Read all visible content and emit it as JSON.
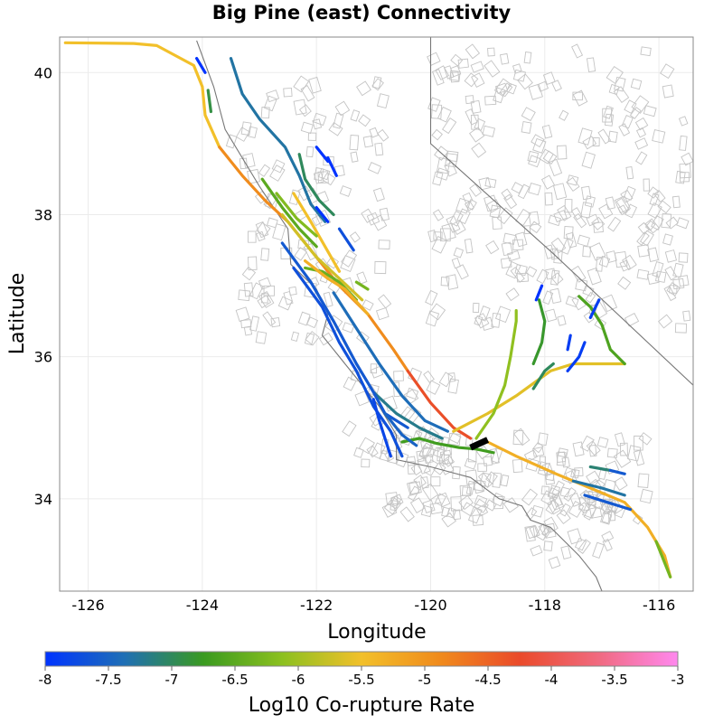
{
  "chart_data": {
    "type": "map",
    "title": "Big Pine (east) Connectivity",
    "xlabel": "Longitude",
    "ylabel": "Latitude",
    "xlim": [
      -126.5,
      -115.4
    ],
    "ylim": [
      32.7,
      40.5
    ],
    "x_ticks": [
      -126,
      -124,
      -122,
      -120,
      -118,
      -116
    ],
    "y_ticks": [
      34,
      36,
      38,
      40
    ],
    "grid": true,
    "colorbar": {
      "label": "Log10 Co-rupture Rate",
      "range": [
        -8,
        -3
      ],
      "ticks": [
        "-8",
        "-7.5",
        "-7",
        "-6.5",
        "-6",
        "-5.5",
        "-5",
        "-4.5",
        "-4",
        "-3.5",
        "-3"
      ],
      "colors": [
        "#0033ff",
        "#1f6fb5",
        "#3a9a20",
        "#8cc020",
        "#f2c02a",
        "#f08a1c",
        "#ea4a2a",
        "#f06a80",
        "#ff88ee"
      ]
    },
    "source_section": {
      "color": "#000000",
      "points": [
        [
          -119.3,
          34.72
        ],
        [
          -119.0,
          34.83
        ]
      ]
    },
    "faults": [
      {
        "rate": -5.5,
        "points": [
          [
            -126.4,
            40.42
          ],
          [
            -125.2,
            40.41
          ],
          [
            -124.8,
            40.38
          ],
          [
            -124.15,
            40.1
          ],
          [
            -124.0,
            39.8
          ],
          [
            -123.95,
            39.4
          ],
          [
            -123.7,
            38.95
          ]
        ]
      },
      {
        "rate": -4.9,
        "points": [
          [
            -123.7,
            38.95
          ],
          [
            -123.3,
            38.55
          ],
          [
            -122.9,
            38.2
          ],
          [
            -122.5,
            37.9
          ],
          [
            -122.1,
            37.5
          ],
          [
            -121.6,
            37.0
          ],
          [
            -121.1,
            36.6
          ],
          [
            -120.65,
            36.1
          ],
          [
            -120.4,
            35.8
          ]
        ]
      },
      {
        "rate": -4.3,
        "points": [
          [
            -120.4,
            35.8
          ],
          [
            -120.0,
            35.35
          ],
          [
            -119.6,
            35.0
          ],
          [
            -119.3,
            34.85
          ]
        ]
      },
      {
        "rate": -5.3,
        "points": [
          [
            -119.0,
            34.8
          ],
          [
            -118.5,
            34.6
          ],
          [
            -117.8,
            34.35
          ],
          [
            -117.2,
            34.15
          ],
          [
            -116.6,
            33.95
          ],
          [
            -116.2,
            33.6
          ],
          [
            -115.9,
            33.2
          ],
          [
            -115.8,
            32.9
          ]
        ]
      },
      {
        "rate": -6.3,
        "points": [
          [
            -116.05,
            33.4
          ],
          [
            -115.8,
            32.9
          ]
        ]
      },
      {
        "rate": -5.6,
        "points": [
          [
            -119.6,
            34.95
          ],
          [
            -119.0,
            35.2
          ],
          [
            -118.5,
            35.45
          ],
          [
            -117.9,
            35.8
          ],
          [
            -117.5,
            35.9
          ],
          [
            -117.0,
            35.9
          ],
          [
            -116.6,
            35.9
          ]
        ]
      },
      {
        "rate": -6.6,
        "points": [
          [
            -116.6,
            35.9
          ],
          [
            -116.85,
            36.1
          ],
          [
            -117.0,
            36.45
          ],
          [
            -117.2,
            36.7
          ],
          [
            -117.4,
            36.85
          ]
        ]
      },
      {
        "rate": -6.1,
        "points": [
          [
            -119.2,
            34.85
          ],
          [
            -118.9,
            35.2
          ],
          [
            -118.7,
            35.6
          ],
          [
            -118.6,
            36.0
          ],
          [
            -118.5,
            36.5
          ],
          [
            -118.5,
            36.65
          ]
        ]
      },
      {
        "rate": -6.8,
        "points": [
          [
            -118.2,
            35.9
          ],
          [
            -118.05,
            36.2
          ],
          [
            -118.0,
            36.5
          ],
          [
            -118.1,
            36.8
          ]
        ]
      },
      {
        "rate": -8.0,
        "points": [
          [
            -118.15,
            36.8
          ],
          [
            -118.05,
            37.0
          ]
        ]
      },
      {
        "rate": -7.0,
        "points": [
          [
            -118.2,
            35.55
          ],
          [
            -118.0,
            35.8
          ],
          [
            -117.85,
            35.9
          ]
        ]
      },
      {
        "rate": -7.9,
        "points": [
          [
            -117.6,
            35.8
          ],
          [
            -117.4,
            36.0
          ],
          [
            -117.3,
            36.2
          ]
        ]
      },
      {
        "rate": -7.9,
        "points": [
          [
            -117.6,
            36.1
          ],
          [
            -117.55,
            36.3
          ]
        ]
      },
      {
        "rate": -7.9,
        "points": [
          [
            -117.2,
            36.55
          ],
          [
            -117.05,
            36.8
          ]
        ]
      },
      {
        "rate": -6.7,
        "points": [
          [
            -120.5,
            34.8
          ],
          [
            -120.2,
            34.85
          ],
          [
            -119.9,
            34.78
          ],
          [
            -119.5,
            34.72
          ],
          [
            -119.2,
            34.7
          ],
          [
            -118.9,
            34.65
          ]
        ]
      },
      {
        "rate": -7.2,
        "points": [
          [
            -121.0,
            35.5
          ],
          [
            -120.6,
            35.2
          ],
          [
            -120.2,
            35.0
          ],
          [
            -119.8,
            34.85
          ]
        ]
      },
      {
        "rate": -7.4,
        "points": [
          [
            -121.7,
            36.9
          ],
          [
            -121.3,
            36.4
          ],
          [
            -120.9,
            35.9
          ],
          [
            -120.5,
            35.45
          ],
          [
            -120.1,
            35.1
          ],
          [
            -119.7,
            34.95
          ]
        ]
      },
      {
        "rate": -7.6,
        "points": [
          [
            -122.6,
            37.6
          ],
          [
            -122.1,
            37.05
          ],
          [
            -121.7,
            36.5
          ],
          [
            -121.3,
            35.9
          ],
          [
            -121.0,
            35.5
          ],
          [
            -120.8,
            35.2
          ],
          [
            -120.4,
            35.0
          ]
        ]
      },
      {
        "rate": -7.7,
        "points": [
          [
            -122.4,
            37.25
          ],
          [
            -121.9,
            36.7
          ],
          [
            -121.6,
            36.2
          ],
          [
            -121.3,
            35.8
          ],
          [
            -121.0,
            35.3
          ],
          [
            -120.7,
            34.95
          ],
          [
            -120.5,
            34.6
          ]
        ]
      },
      {
        "rate": -7.8,
        "points": [
          [
            -121.0,
            35.4
          ],
          [
            -120.9,
            35.1
          ],
          [
            -120.8,
            34.85
          ],
          [
            -120.7,
            34.6
          ]
        ]
      },
      {
        "rate": -7.5,
        "points": [
          [
            -120.8,
            35.2
          ],
          [
            -120.5,
            34.9
          ],
          [
            -120.25,
            34.75
          ]
        ]
      },
      {
        "rate": -6.4,
        "points": [
          [
            -122.2,
            37.25
          ],
          [
            -121.9,
            37.2
          ],
          [
            -121.6,
            37.05
          ],
          [
            -121.3,
            36.8
          ]
        ]
      },
      {
        "rate": -5.3,
        "points": [
          [
            -122.2,
            37.35
          ],
          [
            -121.8,
            37.1
          ],
          [
            -121.5,
            36.95
          ],
          [
            -121.1,
            36.6
          ]
        ]
      },
      {
        "rate": -5.7,
        "points": [
          [
            -122.6,
            38.0
          ],
          [
            -122.3,
            37.7
          ],
          [
            -122.0,
            37.4
          ],
          [
            -121.6,
            37.1
          ],
          [
            -121.2,
            36.8
          ]
        ]
      },
      {
        "rate": -5.5,
        "points": [
          [
            -122.4,
            38.3
          ],
          [
            -122.1,
            37.9
          ],
          [
            -121.85,
            37.55
          ],
          [
            -121.6,
            37.2
          ]
        ]
      },
      {
        "rate": -6.5,
        "points": [
          [
            -122.95,
            38.5
          ],
          [
            -122.6,
            38.1
          ],
          [
            -122.3,
            37.8
          ],
          [
            -122.0,
            37.55
          ]
        ]
      },
      {
        "rate": -6.2,
        "points": [
          [
            -122.7,
            38.3
          ],
          [
            -122.35,
            37.95
          ],
          [
            -122.0,
            37.7
          ]
        ]
      },
      {
        "rate": -7.3,
        "points": [
          [
            -123.5,
            40.2
          ],
          [
            -123.3,
            39.7
          ],
          [
            -123.0,
            39.35
          ],
          [
            -122.55,
            38.95
          ],
          [
            -122.3,
            38.55
          ],
          [
            -122.1,
            38.15
          ],
          [
            -121.85,
            37.9
          ]
        ]
      },
      {
        "rate": -6.9,
        "points": [
          [
            -123.9,
            39.75
          ],
          [
            -123.85,
            39.45
          ]
        ]
      },
      {
        "rate": -8.0,
        "points": [
          [
            -124.1,
            40.2
          ],
          [
            -123.95,
            40.0
          ]
        ]
      },
      {
        "rate": -7.0,
        "points": [
          [
            -122.3,
            38.85
          ],
          [
            -122.2,
            38.5
          ],
          [
            -121.95,
            38.2
          ],
          [
            -121.7,
            38.0
          ]
        ]
      },
      {
        "rate": -8.0,
        "points": [
          [
            -122.0,
            38.95
          ],
          [
            -121.8,
            38.75
          ]
        ]
      },
      {
        "rate": -8.0,
        "points": [
          [
            -121.8,
            38.8
          ],
          [
            -121.65,
            38.55
          ]
        ]
      },
      {
        "rate": -8.0,
        "points": [
          [
            -122.0,
            38.1
          ],
          [
            -121.8,
            37.9
          ]
        ]
      },
      {
        "rate": -7.7,
        "points": [
          [
            -121.6,
            37.8
          ],
          [
            -121.35,
            37.5
          ]
        ]
      },
      {
        "rate": -6.3,
        "points": [
          [
            -121.3,
            37.05
          ],
          [
            -121.1,
            36.95
          ]
        ]
      },
      {
        "rate": -7.1,
        "points": [
          [
            -117.2,
            34.45
          ],
          [
            -116.85,
            34.4
          ]
        ]
      },
      {
        "rate": -7.6,
        "points": [
          [
            -116.85,
            34.4
          ],
          [
            -116.6,
            34.35
          ]
        ]
      },
      {
        "rate": -7.3,
        "points": [
          [
            -117.5,
            34.25
          ],
          [
            -117.0,
            34.15
          ],
          [
            -116.6,
            34.05
          ]
        ]
      },
      {
        "rate": -7.6,
        "points": [
          [
            -117.3,
            34.05
          ],
          [
            -116.9,
            33.95
          ],
          [
            -116.5,
            33.85
          ]
        ]
      }
    ],
    "borders": [
      [
        [
          -120.0,
          40.5
        ],
        [
          -120.0,
          39.0
        ],
        [
          -117.85,
          37.45
        ],
        [
          -115.4,
          35.6
        ]
      ],
      [
        [
          -124.1,
          40.45
        ],
        [
          -123.8,
          39.8
        ],
        [
          -123.6,
          39.2
        ],
        [
          -123.0,
          38.4
        ],
        [
          -122.5,
          37.8
        ],
        [
          -122.45,
          37.3
        ],
        [
          -122.0,
          36.95
        ],
        [
          -121.8,
          36.6
        ],
        [
          -121.9,
          36.3
        ],
        [
          -121.4,
          35.8
        ],
        [
          -120.9,
          35.3
        ],
        [
          -120.6,
          34.9
        ],
        [
          -120.6,
          34.55
        ],
        [
          -120.0,
          34.45
        ],
        [
          -119.3,
          34.3
        ],
        [
          -118.8,
          34.0
        ],
        [
          -118.4,
          33.9
        ],
        [
          -118.25,
          33.7
        ],
        [
          -117.9,
          33.6
        ],
        [
          -117.4,
          33.2
        ],
        [
          -117.1,
          32.9
        ],
        [
          -117.0,
          32.7
        ]
      ]
    ],
    "block_fields": [
      {
        "x": [
          -120.0,
          -115.5
        ],
        "y": [
          36.4,
          40.4
        ],
        "count": 260,
        "seed": 7
      },
      {
        "x": [
          -120.8,
          -116.2
        ],
        "y": [
          33.7,
          34.9
        ],
        "count": 150,
        "seed": 19
      },
      {
        "x": [
          -123.5,
          -120.8
        ],
        "y": [
          36.2,
          39.9
        ],
        "count": 120,
        "seed": 31
      },
      {
        "x": [
          -121.5,
          -119.6
        ],
        "y": [
          34.4,
          35.9
        ],
        "count": 40,
        "seed": 43
      },
      {
        "x": [
          -118.3,
          -116.8
        ],
        "y": [
          33.1,
          34.1
        ],
        "count": 30,
        "seed": 57
      }
    ]
  }
}
